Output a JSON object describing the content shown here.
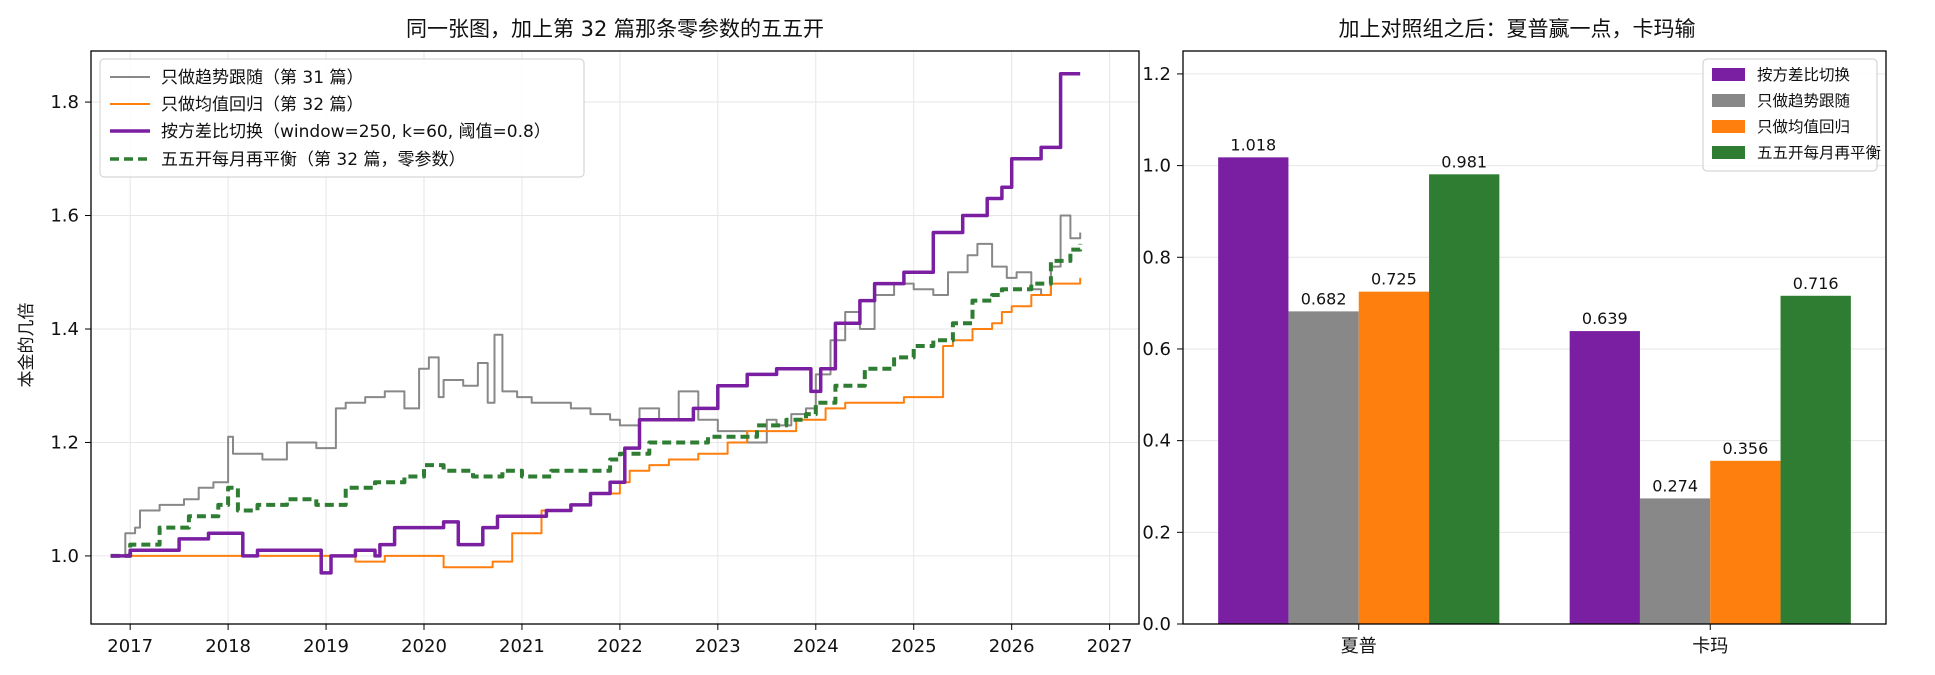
{
  "chart_data": [
    {
      "type": "line",
      "title": "同一张图，加上第 32 篇那条零参数的五五开",
      "ylabel": "本金的几倍",
      "xlabel": "",
      "xlim": [
        2016.6,
        2027.3
      ],
      "ylim": [
        0.88,
        1.89
      ],
      "xticks": [
        "2017",
        "2018",
        "2019",
        "2020",
        "2021",
        "2022",
        "2023",
        "2024",
        "2025",
        "2026",
        "2027"
      ],
      "xtick_values": [
        2017,
        2018,
        2019,
        2020,
        2021,
        2022,
        2023,
        2024,
        2025,
        2026,
        2027
      ],
      "yticks": [
        "1.0",
        "1.2",
        "1.4",
        "1.6",
        "1.8"
      ],
      "ytick_values": [
        1.0,
        1.2,
        1.4,
        1.6,
        1.8
      ],
      "grid": true,
      "legend_position": "top-left",
      "series": [
        {
          "name": "只做趋势跟随（第 31 篇）",
          "color": "#888888",
          "style": "solid",
          "x": [
            2016.8,
            2016.95,
            2017.05,
            2017.1,
            2017.3,
            2017.55,
            2017.7,
            2017.85,
            2018.0,
            2018.05,
            2018.15,
            2018.35,
            2018.6,
            2018.9,
            2019.1,
            2019.2,
            2019.4,
            2019.6,
            2019.8,
            2019.95,
            2020.05,
            2020.15,
            2020.2,
            2020.4,
            2020.55,
            2020.65,
            2020.72,
            2020.8,
            2020.95,
            2021.1,
            2021.3,
            2021.5,
            2021.7,
            2021.9,
            2022.0,
            2022.2,
            2022.4,
            2022.6,
            2022.8,
            2023.0,
            2023.3,
            2023.5,
            2023.6,
            2023.75,
            2023.9,
            2024.0,
            2024.15,
            2024.3,
            2024.45,
            2024.6,
            2024.8,
            2025.0,
            2025.2,
            2025.35,
            2025.45,
            2025.55,
            2025.65,
            2025.8,
            2025.95,
            2026.05,
            2026.2,
            2026.3,
            2026.4,
            2026.5,
            2026.6,
            2026.7
          ],
          "y": [
            1.0,
            1.04,
            1.05,
            1.08,
            1.09,
            1.1,
            1.12,
            1.13,
            1.21,
            1.18,
            1.18,
            1.17,
            1.2,
            1.19,
            1.26,
            1.27,
            1.28,
            1.29,
            1.26,
            1.33,
            1.35,
            1.28,
            1.31,
            1.3,
            1.34,
            1.27,
            1.39,
            1.29,
            1.28,
            1.27,
            1.27,
            1.26,
            1.25,
            1.24,
            1.23,
            1.26,
            1.24,
            1.29,
            1.24,
            1.22,
            1.2,
            1.24,
            1.23,
            1.25,
            1.26,
            1.32,
            1.38,
            1.43,
            1.4,
            1.46,
            1.48,
            1.47,
            1.46,
            1.5,
            1.5,
            1.53,
            1.55,
            1.51,
            1.49,
            1.5,
            1.47,
            1.46,
            1.51,
            1.6,
            1.56,
            1.57
          ]
        },
        {
          "name": "只做均值回归（第 32 篇）",
          "color": "#ff7f0e",
          "style": "solid",
          "x": [
            2016.8,
            2018.9,
            2019.3,
            2019.6,
            2020.1,
            2020.2,
            2020.7,
            2020.9,
            2021.2,
            2021.5,
            2021.7,
            2022.0,
            2022.1,
            2022.3,
            2022.5,
            2022.8,
            2023.1,
            2023.3,
            2023.5,
            2023.8,
            2024.1,
            2024.3,
            2024.6,
            2024.9,
            2025.3,
            2025.4,
            2025.6,
            2025.8,
            2025.9,
            2026.0,
            2026.2,
            2026.4,
            2026.7
          ],
          "y": [
            1.0,
            1.0,
            0.99,
            1.0,
            1.0,
            0.98,
            0.99,
            1.04,
            1.08,
            1.09,
            1.11,
            1.13,
            1.15,
            1.16,
            1.17,
            1.18,
            1.2,
            1.22,
            1.22,
            1.24,
            1.26,
            1.27,
            1.27,
            1.28,
            1.37,
            1.38,
            1.4,
            1.41,
            1.43,
            1.44,
            1.46,
            1.48,
            1.49
          ]
        },
        {
          "name": "按方差比切换（window=250, k=60, 阈值=0.8）",
          "color": "#7b1fa2",
          "style": "solid-thick",
          "x": [
            2016.8,
            2017.0,
            2017.5,
            2017.8,
            2018.0,
            2018.15,
            2018.3,
            2018.7,
            2018.95,
            2019.05,
            2019.3,
            2019.5,
            2019.55,
            2019.7,
            2020.0,
            2020.2,
            2020.35,
            2020.6,
            2020.75,
            2021.0,
            2021.25,
            2021.5,
            2021.7,
            2021.9,
            2022.05,
            2022.2,
            2022.45,
            2022.75,
            2023.0,
            2023.3,
            2023.6,
            2023.95,
            2024.05,
            2024.2,
            2024.45,
            2024.6,
            2024.9,
            2025.2,
            2025.5,
            2025.75,
            2025.9,
            2026.0,
            2026.1,
            2026.3,
            2026.5,
            2026.7
          ],
          "y": [
            1.0,
            1.01,
            1.03,
            1.04,
            1.04,
            1.0,
            1.01,
            1.01,
            0.97,
            1.0,
            1.01,
            1.0,
            1.02,
            1.05,
            1.05,
            1.06,
            1.02,
            1.05,
            1.07,
            1.07,
            1.08,
            1.09,
            1.11,
            1.13,
            1.19,
            1.24,
            1.24,
            1.26,
            1.3,
            1.32,
            1.33,
            1.29,
            1.33,
            1.41,
            1.45,
            1.48,
            1.5,
            1.57,
            1.6,
            1.63,
            1.65,
            1.7,
            1.7,
            1.72,
            1.85,
            1.85
          ]
        },
        {
          "name": "五五开每月再平衡（第 32 篇，零参数）",
          "color": "#2e7d32",
          "style": "dashed",
          "x": [
            2016.8,
            2017.0,
            2017.3,
            2017.6,
            2017.9,
            2018.0,
            2018.1,
            2018.3,
            2018.6,
            2018.9,
            2019.2,
            2019.5,
            2019.8,
            2020.0,
            2020.2,
            2020.5,
            2020.8,
            2021.0,
            2021.3,
            2021.6,
            2021.9,
            2022.0,
            2022.3,
            2022.6,
            2022.9,
            2023.1,
            2023.4,
            2023.7,
            2023.9,
            2024.0,
            2024.2,
            2024.5,
            2024.8,
            2025.0,
            2025.2,
            2025.4,
            2025.6,
            2025.8,
            2025.9,
            2026.0,
            2026.2,
            2026.4,
            2026.6,
            2026.7
          ],
          "y": [
            1.0,
            1.02,
            1.05,
            1.07,
            1.09,
            1.12,
            1.08,
            1.09,
            1.1,
            1.09,
            1.12,
            1.13,
            1.14,
            1.16,
            1.15,
            1.14,
            1.15,
            1.14,
            1.15,
            1.15,
            1.17,
            1.18,
            1.2,
            1.2,
            1.21,
            1.21,
            1.23,
            1.24,
            1.25,
            1.27,
            1.3,
            1.33,
            1.35,
            1.37,
            1.38,
            1.41,
            1.45,
            1.46,
            1.47,
            1.47,
            1.48,
            1.52,
            1.54,
            1.55
          ]
        }
      ]
    },
    {
      "type": "bar",
      "title": "加上对照组之后：夏普赢一点，卡玛输",
      "categories": [
        "夏普",
        "卡玛"
      ],
      "ylim": [
        0,
        1.25
      ],
      "yticks": [
        "0.0",
        "0.2",
        "0.4",
        "0.6",
        "0.8",
        "1.0",
        "1.2"
      ],
      "ytick_values": [
        0.0,
        0.2,
        0.4,
        0.6,
        0.8,
        1.0,
        1.2
      ],
      "grid": true,
      "legend_position": "top-right",
      "series": [
        {
          "name": "按方差比切换",
          "color": "#7b1fa2",
          "values": [
            1.018,
            0.639
          ],
          "labels": [
            "1.018",
            "0.639"
          ]
        },
        {
          "name": "只做趋势跟随",
          "color": "#888888",
          "values": [
            0.682,
            0.274
          ],
          "labels": [
            "0.682",
            "0.274"
          ]
        },
        {
          "name": "只做均值回归",
          "color": "#ff7f0e",
          "values": [
            0.725,
            0.356
          ],
          "labels": [
            "0.725",
            "0.356"
          ]
        },
        {
          "name": "五五开每月再平衡",
          "color": "#2e7d32",
          "values": [
            0.981,
            0.716
          ],
          "labels": [
            "0.981",
            "0.716"
          ]
        }
      ]
    }
  ]
}
